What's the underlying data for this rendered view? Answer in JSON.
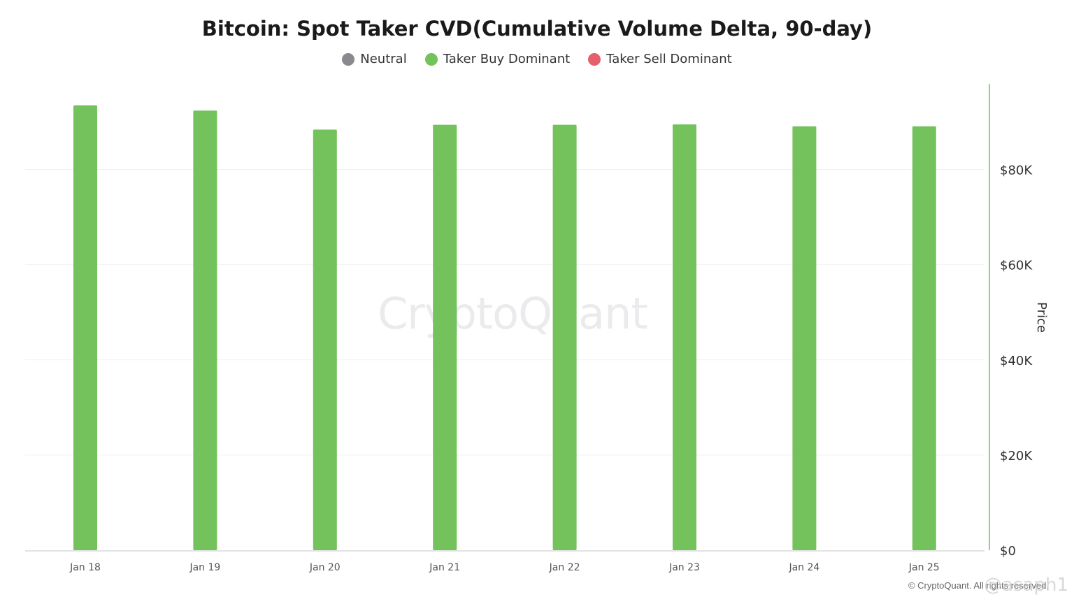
{
  "chart_data": {
    "type": "bar",
    "title": "Bitcoin: Spot Taker CVD(Cumulative Volume Delta, 90-day)",
    "legend": [
      {
        "name": "Neutral",
        "color": "#8a8a8e"
      },
      {
        "name": "Taker Buy Dominant",
        "color": "#74c25c"
      },
      {
        "name": "Taker Sell Dominant",
        "color": "#e5606a"
      }
    ],
    "legend_position": "top-center",
    "categories": [
      "Jan 18",
      "Jan 19",
      "Jan 20",
      "Jan 21",
      "Jan 22",
      "Jan 23",
      "Jan 24",
      "Jan 25"
    ],
    "series": [
      {
        "name": "Taker Buy Dominant",
        "color": "#74c25c",
        "values": [
          93500,
          92400,
          88400,
          89400,
          89400,
          89500,
          89100,
          89100
        ]
      }
    ],
    "ylabel": "Price",
    "yaxis_position": "right",
    "ylim": [
      0,
      98000
    ],
    "yticks": [
      0,
      20000,
      40000,
      60000,
      80000
    ],
    "ytick_labels": [
      "$0",
      "$20K",
      "$40K",
      "$60K",
      "$80K"
    ],
    "grid": true
  },
  "watermark": "CryptoQuant",
  "copyright": "© CryptoQuant. All rights reserved.",
  "handle": "@asaph1"
}
